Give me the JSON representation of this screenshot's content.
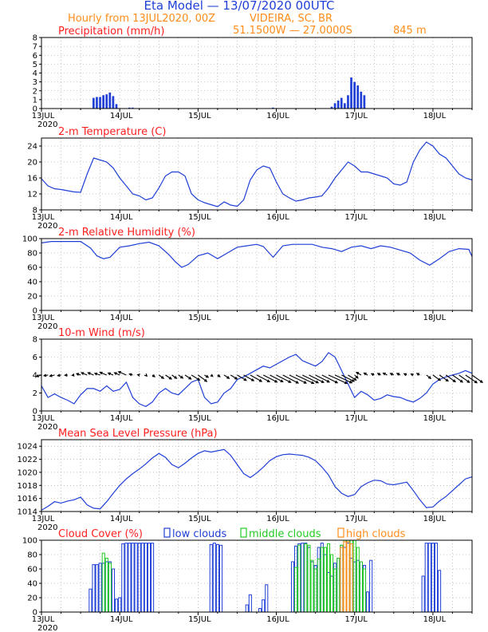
{
  "header": {
    "title": "Eta Model — 13/07/2020 00UTC",
    "line2_left": "Hourly from 13JUL2020, 00Z",
    "line2_right": "VIDEIRA, SC, BR",
    "coords": "51.1500W — 27.0000S",
    "elevation": "845   m"
  },
  "colors": {
    "title": "#1f3fd6",
    "orange": "#ff8c1a",
    "red": "#ff2020",
    "blue": "#1f3fd6",
    "green": "#22cc22",
    "black": "#000000",
    "grid": "#999999"
  },
  "x_axis": {
    "start_hour": 0,
    "end_hour": 132,
    "day_ticks": [
      {
        "hour": 0,
        "label": "13JUL",
        "year": "2020"
      },
      {
        "hour": 24,
        "label": "14JUL"
      },
      {
        "hour": 48,
        "label": "15JUL"
      },
      {
        "hour": 72,
        "label": "16JUL"
      },
      {
        "hour": 96,
        "label": "17JUL"
      },
      {
        "hour": 120,
        "label": "18JUL"
      }
    ]
  },
  "chart_data": [
    {
      "id": "precip",
      "type": "bar",
      "title": "Precipitation (mm/h)",
      "xlabel": "hour",
      "ylabel": "mm/h",
      "ylim": [
        0,
        8
      ],
      "yticks": [
        0,
        1,
        2,
        3,
        4,
        5,
        6,
        7,
        8
      ],
      "series": [
        {
          "name": "precipitation",
          "color": "#1f3fd6",
          "x": [
            16,
            17,
            18,
            19,
            20,
            21,
            22,
            23,
            27,
            28,
            71,
            89,
            90,
            91,
            92,
            93,
            94,
            95,
            96,
            97,
            98,
            99
          ],
          "values": [
            1.2,
            1.3,
            1.3,
            1.5,
            1.6,
            1.8,
            1.4,
            0.5,
            0.1,
            0.1,
            0.1,
            0.2,
            0.6,
            0.9,
            1.2,
            0.6,
            1.5,
            3.5,
            3.0,
            2.6,
            1.9,
            1.5
          ]
        }
      ]
    },
    {
      "id": "temp",
      "type": "line",
      "title": "2-m Temperature (C)",
      "xlabel": "hour",
      "ylabel": "C",
      "ylim": [
        8,
        26
      ],
      "yticks": [
        8,
        12,
        16,
        20,
        24
      ],
      "series": [
        {
          "name": "temperature",
          "color": "#1f3fd6",
          "x": [
            0,
            2,
            4,
            6,
            8,
            10,
            12,
            14,
            16,
            18,
            20,
            22,
            24,
            26,
            28,
            30,
            32,
            34,
            36,
            38,
            40,
            42,
            44,
            46,
            48,
            50,
            52,
            54,
            56,
            58,
            60,
            62,
            64,
            66,
            68,
            70,
            72,
            74,
            76,
            78,
            80,
            82,
            84,
            86,
            88,
            90,
            92,
            94,
            96,
            98,
            100,
            102,
            104,
            106,
            108,
            110,
            112,
            114,
            116,
            118,
            120,
            122,
            124,
            126,
            128,
            130,
            132
          ],
          "values": [
            15.8,
            14,
            13.3,
            13.1,
            12.8,
            12.5,
            12.4,
            17,
            21,
            20.5,
            20,
            18.5,
            16,
            14,
            12,
            11.5,
            10.5,
            11,
            13.5,
            16.5,
            17.5,
            17.5,
            16.5,
            12,
            10.5,
            9.8,
            9.3,
            8.8,
            10,
            9.2,
            8.9,
            10.5,
            15.5,
            18,
            19,
            18.5,
            15,
            12,
            11,
            10.2,
            10.5,
            11,
            11.2,
            11.5,
            13.5,
            16,
            18,
            20,
            19,
            17.5,
            17.5,
            17,
            16.5,
            16,
            14.5,
            14.2,
            15,
            20,
            23,
            25,
            24,
            22,
            21,
            19,
            17,
            16,
            15.5
          ]
        }
      ]
    },
    {
      "id": "rh",
      "type": "line",
      "title": "2-m Relative Humidity (%)",
      "xlabel": "hour",
      "ylabel": "%",
      "ylim": [
        0,
        100
      ],
      "yticks": [
        0,
        20,
        40,
        60,
        80,
        100
      ],
      "series": [
        {
          "name": "relative humidity",
          "color": "#1f3fd6",
          "x": [
            0,
            3,
            6,
            9,
            12,
            15,
            17,
            19,
            21,
            24,
            27,
            30,
            33,
            36,
            39,
            41,
            43,
            45,
            48,
            51,
            54,
            57,
            60,
            63,
            66,
            68,
            71,
            74,
            77,
            80,
            83,
            86,
            89,
            92,
            95,
            98,
            101,
            104,
            107,
            110,
            113,
            116,
            119,
            122,
            125,
            128,
            131,
            132
          ],
          "values": [
            94,
            96,
            96,
            96,
            96,
            87,
            76,
            72,
            74,
            88,
            90,
            93,
            95,
            90,
            78,
            68,
            60,
            64,
            76,
            80,
            72,
            80,
            88,
            90,
            92,
            89,
            74,
            90,
            92,
            92,
            92,
            88,
            86,
            82,
            88,
            90,
            86,
            90,
            88,
            84,
            80,
            70,
            63,
            72,
            82,
            86,
            85,
            75
          ]
        }
      ]
    },
    {
      "id": "wind",
      "type": "line",
      "title": "10-m Wind (m/s)",
      "xlabel": "hour",
      "ylabel": "m/s",
      "ylim": [
        0,
        8
      ],
      "yticks": [
        0,
        2,
        4,
        6,
        8
      ],
      "series": [
        {
          "name": "wind speed",
          "color": "#1f3fd6",
          "x": [
            0,
            2,
            4,
            6,
            8,
            10,
            12,
            14,
            16,
            18,
            20,
            22,
            24,
            26,
            28,
            30,
            32,
            34,
            36,
            38,
            40,
            42,
            44,
            46,
            48,
            50,
            52,
            54,
            56,
            58,
            60,
            62,
            64,
            66,
            68,
            70,
            72,
            74,
            76,
            78,
            80,
            82,
            84,
            86,
            88,
            90,
            92,
            94,
            96,
            98,
            100,
            102,
            104,
            106,
            108,
            110,
            112,
            114,
            116,
            118,
            120,
            122,
            124,
            126,
            128,
            130,
            132
          ],
          "values": [
            2.8,
            1.5,
            1.9,
            1.5,
            1.2,
            0.8,
            1.8,
            2.5,
            2.5,
            2.2,
            2.8,
            2.2,
            2.4,
            3.2,
            1.5,
            0.8,
            0.5,
            1.0,
            2.0,
            2.5,
            2.0,
            1.8,
            2.5,
            3.2,
            3.5,
            1.5,
            0.8,
            1.0,
            2.0,
            2.5,
            3.5,
            3.8,
            4.2,
            4.6,
            5.0,
            4.8,
            5.2,
            5.6,
            6.0,
            6.3,
            5.6,
            5.3,
            5.0,
            5.5,
            6.5,
            6.0,
            4.5,
            3.0,
            1.5,
            2.2,
            1.8,
            1.2,
            1.4,
            1.8,
            1.6,
            1.5,
            1.2,
            1.0,
            1.4,
            2.0,
            3.0,
            3.5,
            3.8,
            4.0,
            4.2,
            4.5,
            4.2
          ]
        },
        {
          "name": "wind arrows",
          "type": "vector",
          "color": "#000000",
          "baseline": 4,
          "x": [
            0,
            2,
            4,
            6,
            8,
            10,
            12,
            14,
            16,
            18,
            20,
            22,
            24,
            26,
            28,
            30,
            32,
            34,
            36,
            38,
            40,
            42,
            44,
            46,
            48,
            50,
            52,
            54,
            56,
            58,
            60,
            62,
            64,
            66,
            68,
            70,
            72,
            74,
            76,
            78,
            80,
            82,
            84,
            86,
            88,
            90,
            92,
            94,
            96,
            98,
            100,
            102,
            104,
            106,
            108,
            110,
            112,
            114,
            116,
            118,
            120,
            122,
            124,
            126,
            128,
            130,
            132
          ],
          "u": [
            -1.5,
            -1.2,
            -1.4,
            -1.0,
            -0.8,
            -0.6,
            -1.2,
            -1.7,
            -1.7,
            -1.6,
            -2.0,
            -1.5,
            -1.6,
            -2.3,
            -1.0,
            -0.5,
            0.3,
            0.7,
            1.4,
            1.8,
            1.4,
            1.3,
            1.8,
            2.4,
            2.6,
            1.1,
            0.5,
            0.7,
            1.5,
            1.9,
            2.7,
            3.0,
            3.4,
            3.8,
            4.1,
            3.9,
            4.3,
            4.6,
            5.0,
            5.3,
            4.7,
            4.4,
            4.1,
            4.6,
            5.5,
            5.0,
            3.7,
            2.4,
            1.0,
            -1.4,
            -1.1,
            -0.8,
            -0.9,
            -1.2,
            -1.0,
            -1.0,
            -0.8,
            -0.7,
            -0.9,
            1.3,
            2.2,
            2.6,
            2.8,
            3.0,
            3.1,
            3.4,
            3.1
          ],
          "v": [
            -0.4,
            -0.2,
            -0.3,
            -0.2,
            -0.1,
            -0.1,
            0.4,
            0.7,
            0.7,
            0.5,
            0.8,
            0.6,
            0.7,
            1.0,
            0.3,
            0.1,
            -0.3,
            -0.5,
            -1.0,
            -1.2,
            -1.0,
            -0.9,
            -1.2,
            -1.5,
            -1.9,
            -0.7,
            -0.4,
            -0.5,
            -1.0,
            -1.2,
            -1.6,
            -1.7,
            -1.9,
            -2.0,
            -2.1,
            -2.0,
            -2.2,
            -2.4,
            -2.4,
            -2.5,
            -2.3,
            -2.2,
            -2.1,
            -2.3,
            -2.5,
            -2.3,
            -1.9,
            -1.5,
            -0.9,
            0.8,
            0.6,
            0.4,
            0.5,
            0.6,
            0.5,
            0.5,
            0.4,
            0.3,
            0.5,
            -1.0,
            -1.6,
            -1.8,
            -2.0,
            -2.1,
            -2.2,
            -2.3,
            -2.2
          ]
        }
      ]
    },
    {
      "id": "mslp",
      "type": "line",
      "title": "Mean Sea Level Pressure (hPa)",
      "xlabel": "hour",
      "ylabel": "hPa",
      "ylim": [
        1014,
        1025
      ],
      "yticks": [
        1014,
        1016,
        1018,
        1020,
        1022,
        1024
      ],
      "series": [
        {
          "name": "pressure",
          "color": "#1f3fd6",
          "x": [
            0,
            2,
            4,
            6,
            8,
            10,
            12,
            14,
            16,
            18,
            20,
            22,
            24,
            26,
            28,
            30,
            32,
            34,
            36,
            38,
            40,
            42,
            44,
            46,
            48,
            50,
            52,
            54,
            56,
            58,
            60,
            62,
            64,
            66,
            68,
            70,
            72,
            74,
            76,
            78,
            80,
            82,
            84,
            86,
            88,
            90,
            92,
            94,
            96,
            98,
            100,
            102,
            104,
            106,
            108,
            110,
            112,
            114,
            116,
            118,
            120,
            122,
            124,
            126,
            128,
            130,
            132
          ],
          "values": [
            1014.2,
            1014.8,
            1015.5,
            1015.3,
            1015.6,
            1015.8,
            1016.2,
            1015.0,
            1014.5,
            1014.4,
            1015.5,
            1016.8,
            1018.0,
            1019.0,
            1019.8,
            1020.5,
            1021.3,
            1022.2,
            1022.9,
            1022.3,
            1021.2,
            1020.7,
            1021.4,
            1022.2,
            1022.9,
            1023.3,
            1023.1,
            1023.3,
            1023.5,
            1022.6,
            1021.2,
            1019.8,
            1019.2,
            1019.9,
            1020.8,
            1021.8,
            1022.4,
            1022.7,
            1022.8,
            1022.7,
            1022.6,
            1022.3,
            1021.8,
            1020.8,
            1019.6,
            1017.8,
            1016.8,
            1016.3,
            1016.6,
            1017.8,
            1018.4,
            1018.8,
            1018.7,
            1018.2,
            1018.1,
            1018.3,
            1018.5,
            1017.2,
            1015.8,
            1014.6,
            1014.7,
            1015.6,
            1016.3,
            1017.2,
            1018.1,
            1019.0,
            1019.3
          ]
        }
      ]
    },
    {
      "id": "cloud",
      "type": "bar",
      "title": "Cloud Cover (%)",
      "xlabel": "hour",
      "ylabel": "%",
      "ylim": [
        0,
        100
      ],
      "yticks": [
        0,
        20,
        40,
        60,
        80,
        100
      ],
      "legend": [
        {
          "label": "low clouds",
          "color": "#1f3fd6"
        },
        {
          "label": "middle clouds",
          "color": "#22cc22"
        },
        {
          "label": "high clouds",
          "color": "#ff8c1a"
        }
      ],
      "series": [
        {
          "name": "low clouds",
          "color": "#1f3fd6",
          "x": [
            15,
            16,
            17,
            18,
            19,
            20,
            21,
            22,
            23,
            24,
            25,
            26,
            27,
            28,
            29,
            30,
            31,
            32,
            33,
            34,
            52,
            53,
            54,
            55,
            63,
            64,
            67,
            68,
            69,
            77,
            78,
            79,
            80,
            81,
            82,
            83,
            84,
            85,
            86,
            87,
            88,
            89,
            90,
            91,
            92,
            93,
            94,
            95,
            96,
            97,
            98,
            99,
            100,
            101,
            117,
            118,
            119,
            120,
            121,
            122
          ],
          "values": [
            32,
            66,
            66,
            68,
            68,
            70,
            70,
            60,
            18,
            20,
            95,
            96,
            96,
            96,
            96,
            96,
            96,
            96,
            96,
            96,
            94,
            96,
            94,
            93,
            10,
            24,
            5,
            17,
            38,
            70,
            92,
            95,
            96,
            96,
            90,
            70,
            65,
            90,
            96,
            80,
            55,
            50,
            68,
            75,
            93,
            90,
            96,
            75,
            70,
            72,
            70,
            65,
            28,
            72,
            50,
            96,
            96,
            96,
            96,
            58
          ]
        },
        {
          "name": "middle clouds",
          "color": "#22cc22",
          "x": [
            19,
            20,
            21,
            78,
            79,
            81,
            82,
            83,
            84,
            85,
            86,
            87,
            88,
            89,
            90,
            91,
            92,
            93,
            94,
            95,
            96,
            97,
            98,
            99
          ],
          "values": [
            82,
            75,
            68,
            62,
            93,
            95,
            93,
            72,
            60,
            74,
            90,
            90,
            95,
            80,
            60,
            75,
            93,
            100,
            100,
            100,
            100,
            90,
            70,
            60
          ]
        },
        {
          "name": "high clouds",
          "color": "#ff8c1a",
          "x": [
            92,
            93,
            94,
            95
          ],
          "values": [
            90,
            98,
            98,
            95
          ]
        }
      ]
    }
  ]
}
